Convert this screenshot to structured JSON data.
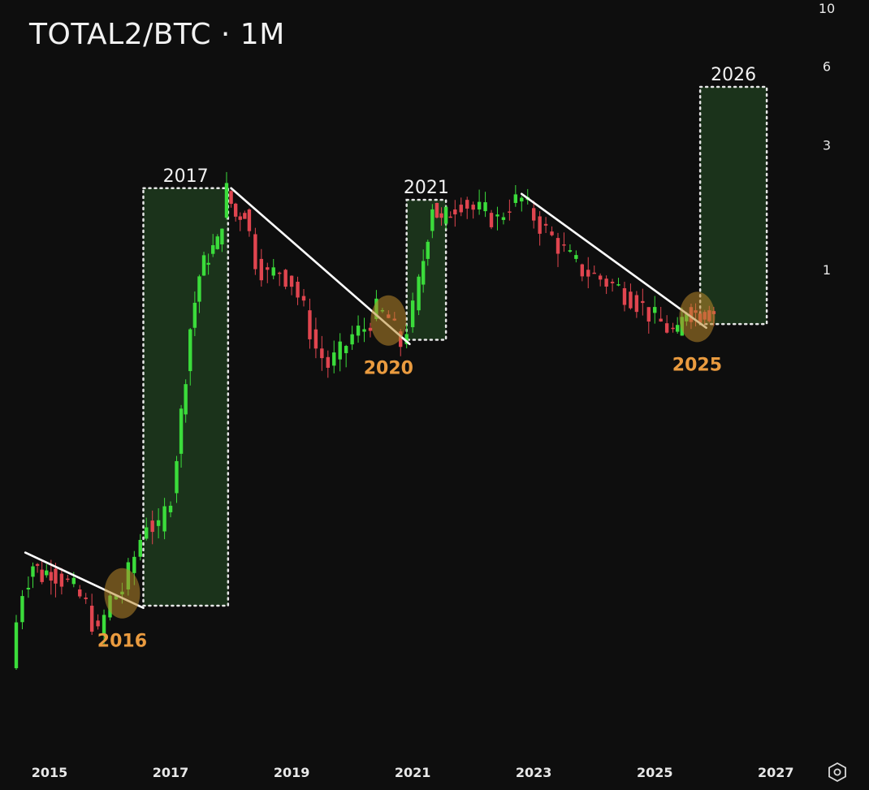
{
  "header": {
    "title": "TOTAL2/BTC · 1M"
  },
  "chart_data": {
    "type": "candlestick",
    "title": "TOTAL2/BTC · 1M",
    "x_axis": {
      "ticks": [
        "2015",
        "2017",
        "2019",
        "2021",
        "2023",
        "2025",
        "2027"
      ],
      "range": [
        2014.45,
        2027.6
      ]
    },
    "y_axis": {
      "scale": "log",
      "ticks": [
        1,
        3,
        6,
        10
      ],
      "range": [
        0.015,
        10
      ]
    },
    "colors": {
      "up": "#3bdc3b",
      "down": "#e0454f",
      "zone_fill": "#1d3a1d",
      "zone_border": "#e6e6e6",
      "trendline": "#ffffff",
      "breakout": "#b8862a",
      "breakout_label": "#ea9b3f"
    },
    "candles_sampled": [
      {
        "t": 2014.45,
        "o": 0.02,
        "c": 0.03
      },
      {
        "t": 2014.55,
        "o": 0.03,
        "c": 0.045
      },
      {
        "t": 2014.65,
        "o": 0.045,
        "c": 0.06
      },
      {
        "t": 2014.8,
        "o": 0.06,
        "c": 0.075
      },
      {
        "t": 2014.95,
        "o": 0.075,
        "c": 0.068
      },
      {
        "t": 2015.1,
        "o": 0.068,
        "c": 0.072
      },
      {
        "t": 2015.3,
        "o": 0.072,
        "c": 0.066
      },
      {
        "t": 2015.5,
        "o": 0.066,
        "c": 0.06
      },
      {
        "t": 2015.7,
        "o": 0.06,
        "c": 0.052
      },
      {
        "t": 2015.9,
        "o": 0.052,
        "c": 0.04
      },
      {
        "t": 2016.1,
        "o": 0.04,
        "c": 0.055
      },
      {
        "t": 2016.3,
        "o": 0.055,
        "c": 0.06
      },
      {
        "t": 2016.5,
        "o": 0.06,
        "c": 0.08
      },
      {
        "t": 2016.7,
        "o": 0.08,
        "c": 0.11
      },
      {
        "t": 2016.9,
        "o": 0.11,
        "c": 0.1
      },
      {
        "t": 2017.1,
        "o": 0.1,
        "c": 0.14
      },
      {
        "t": 2017.25,
        "o": 0.14,
        "c": 0.28
      },
      {
        "t": 2017.4,
        "o": 0.28,
        "c": 0.6
      },
      {
        "t": 2017.55,
        "o": 0.6,
        "c": 0.95
      },
      {
        "t": 2017.7,
        "o": 0.95,
        "c": 1.15
      },
      {
        "t": 2017.85,
        "o": 1.15,
        "c": 1.25
      },
      {
        "t": 2018.0,
        "o": 1.25,
        "c": 2.0
      },
      {
        "t": 2018.15,
        "o": 2.0,
        "c": 1.6
      },
      {
        "t": 2018.3,
        "o": 1.6,
        "c": 1.7
      },
      {
        "t": 2018.5,
        "o": 1.7,
        "c": 1.1
      },
      {
        "t": 2018.7,
        "o": 1.1,
        "c": 0.95
      },
      {
        "t": 2018.9,
        "o": 0.95,
        "c": 1.0
      },
      {
        "t": 2019.1,
        "o": 1.0,
        "c": 0.9
      },
      {
        "t": 2019.3,
        "o": 0.9,
        "c": 0.7
      },
      {
        "t": 2019.5,
        "o": 0.7,
        "c": 0.5
      },
      {
        "t": 2019.7,
        "o": 0.5,
        "c": 0.43
      },
      {
        "t": 2019.9,
        "o": 0.43,
        "c": 0.48
      },
      {
        "t": 2020.1,
        "o": 0.48,
        "c": 0.56
      },
      {
        "t": 2020.3,
        "o": 0.56,
        "c": 0.6
      },
      {
        "t": 2020.5,
        "o": 0.6,
        "c": 0.7
      },
      {
        "t": 2020.7,
        "o": 0.7,
        "c": 0.65
      },
      {
        "t": 2020.9,
        "o": 0.65,
        "c": 0.52
      },
      {
        "t": 2021.1,
        "o": 0.52,
        "c": 0.7
      },
      {
        "t": 2021.25,
        "o": 0.7,
        "c": 1.1
      },
      {
        "t": 2021.4,
        "o": 1.1,
        "c": 1.8
      },
      {
        "t": 2021.55,
        "o": 1.8,
        "c": 1.5
      },
      {
        "t": 2021.7,
        "o": 1.5,
        "c": 1.7
      },
      {
        "t": 2021.9,
        "o": 1.7,
        "c": 1.85
      },
      {
        "t": 2022.1,
        "o": 1.85,
        "c": 1.7
      },
      {
        "t": 2022.3,
        "o": 1.7,
        "c": 1.65
      },
      {
        "t": 2022.5,
        "o": 1.65,
        "c": 1.55
      },
      {
        "t": 2022.7,
        "o": 1.55,
        "c": 1.8
      },
      {
        "t": 2022.9,
        "o": 1.8,
        "c": 1.85
      },
      {
        "t": 2023.1,
        "o": 1.85,
        "c": 1.6
      },
      {
        "t": 2023.3,
        "o": 1.6,
        "c": 1.4
      },
      {
        "t": 2023.5,
        "o": 1.4,
        "c": 1.25
      },
      {
        "t": 2023.7,
        "o": 1.25,
        "c": 1.1
      },
      {
        "t": 2023.9,
        "o": 1.1,
        "c": 1.0
      },
      {
        "t": 2024.1,
        "o": 1.0,
        "c": 0.95
      },
      {
        "t": 2024.3,
        "o": 0.95,
        "c": 0.9
      },
      {
        "t": 2024.5,
        "o": 0.9,
        "c": 0.85
      },
      {
        "t": 2024.7,
        "o": 0.85,
        "c": 0.8
      },
      {
        "t": 2024.9,
        "o": 0.8,
        "c": 0.72
      },
      {
        "t": 2025.1,
        "o": 0.72,
        "c": 0.65
      },
      {
        "t": 2025.3,
        "o": 0.65,
        "c": 0.6
      },
      {
        "t": 2025.45,
        "o": 0.6,
        "c": 0.56
      },
      {
        "t": 2025.6,
        "o": 0.56,
        "c": 0.72
      },
      {
        "t": 2025.75,
        "o": 0.72,
        "c": 0.68
      },
      {
        "t": 2025.9,
        "o": 0.68,
        "c": 0.7
      },
      {
        "t": 2026.05,
        "o": 0.7,
        "c": 0.69
      }
    ],
    "trendlines": [
      {
        "from": [
          2014.6,
          0.083
        ],
        "to": [
          2016.55,
          0.051
        ]
      },
      {
        "from": [
          2018.0,
          2.05
        ],
        "to": [
          2020.95,
          0.52
        ]
      },
      {
        "from": [
          2022.8,
          1.95
        ],
        "to": [
          2025.85,
          0.6
        ]
      }
    ],
    "zones": [
      {
        "label": "2017",
        "x": [
          2016.55,
          2017.95
        ],
        "y": [
          0.052,
          2.05
        ]
      },
      {
        "label": "2021",
        "x": [
          2020.9,
          2021.55
        ],
        "y": [
          0.54,
          1.85
        ]
      },
      {
        "label": "2026",
        "x": [
          2025.75,
          2026.85
        ],
        "y": [
          0.62,
          5.0
        ]
      }
    ],
    "breakouts": [
      {
        "label": "2016",
        "x": 2016.2,
        "y": 0.058
      },
      {
        "label": "2020",
        "x": 2020.6,
        "y": 0.64
      },
      {
        "label": "2025",
        "x": 2025.7,
        "y": 0.66
      }
    ]
  },
  "icons": {
    "settings": "settings-hexagon-icon"
  }
}
